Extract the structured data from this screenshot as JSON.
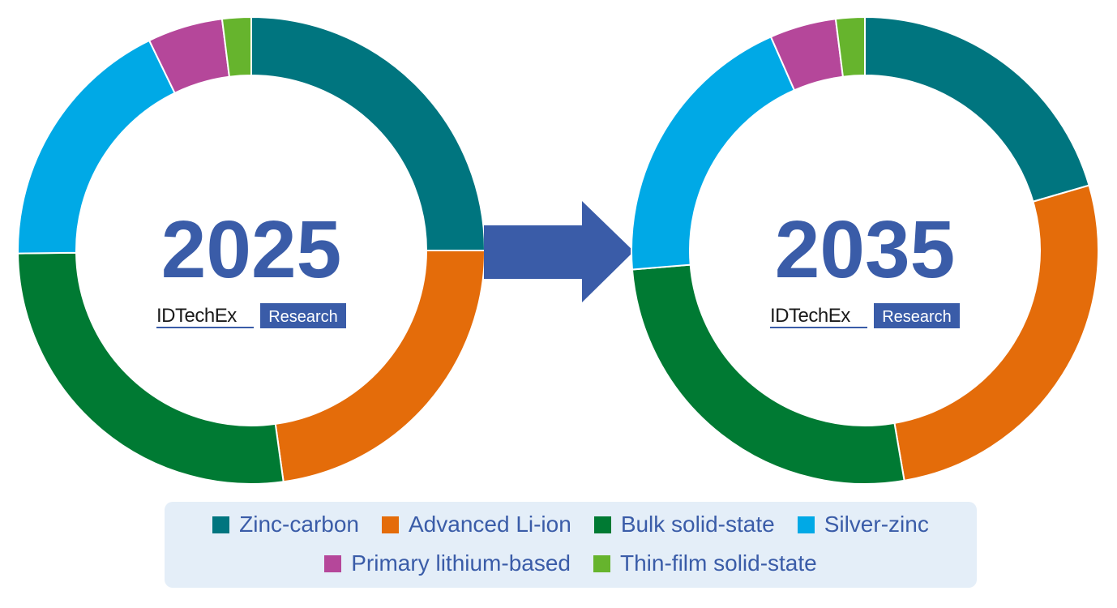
{
  "chart_data": [
    {
      "type": "pie",
      "year_label": "2025",
      "categories": [
        "Zinc-carbon",
        "Advanced Li-ion",
        "Bulk solid-state",
        "Silver-zinc",
        "Primary lithium-based",
        "Thin-film solid-state"
      ],
      "values": [
        25.0,
        22.8,
        27.0,
        18.0,
        5.2,
        2.0
      ]
    },
    {
      "type": "pie",
      "year_label": "2035",
      "categories": [
        "Zinc-carbon",
        "Advanced Li-ion",
        "Bulk solid-state",
        "Silver-zinc",
        "Primary lithium-based",
        "Thin-film solid-state"
      ],
      "values": [
        20.5,
        26.8,
        26.4,
        19.7,
        4.6,
        2.0
      ]
    }
  ],
  "colors": {
    "Zinc-carbon": "#00757f",
    "Advanced Li-ion": "#e46c0a",
    "Bulk solid-state": "#007a33",
    "Silver-zinc": "#00a9e6",
    "Primary lithium-based": "#b5479a",
    "Thin-film solid-state": "#66b42d",
    "year_text": "#3a5ca8",
    "arrow": "#3a5ca8"
  },
  "watermark": {
    "brand": "IDTechEx",
    "tag": "Research"
  },
  "legend": {
    "row1": [
      "Zinc-carbon",
      "Advanced Li-ion",
      "Bulk solid-state",
      "Silver-zinc"
    ],
    "row2": [
      "Primary lithium-based",
      "Thin-film solid-state"
    ]
  },
  "icons": {
    "transition": "right-arrow-icon"
  }
}
